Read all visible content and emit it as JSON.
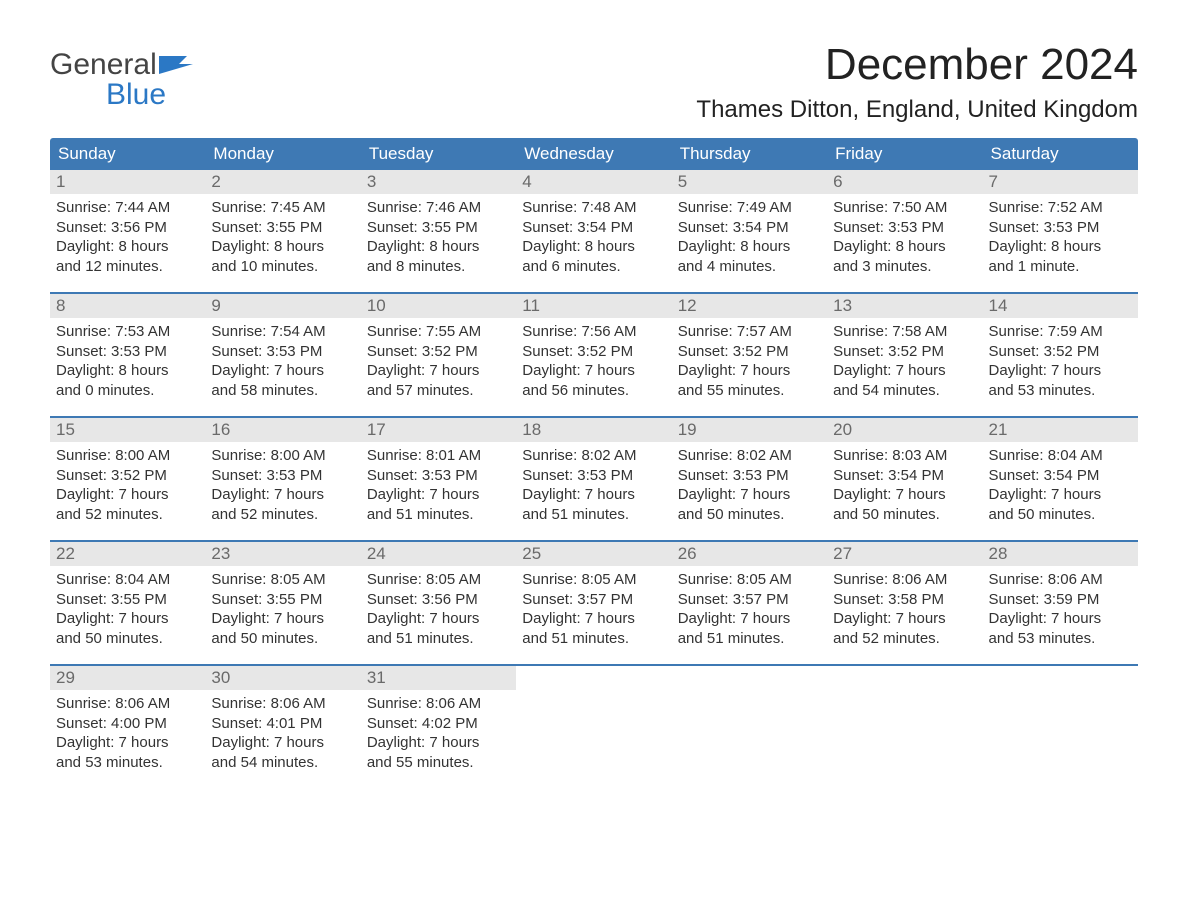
{
  "brand": {
    "word1": "General",
    "word2": "Blue"
  },
  "title": "December 2024",
  "location": "Thames Ditton, England, United Kingdom",
  "colors": {
    "header_bg": "#3e79b4",
    "header_text": "#ffffff",
    "daynum_bg": "#e7e7e7",
    "daynum_text": "#6a6a6a",
    "week_border": "#3e79b4",
    "brand_blue": "#2b78c5",
    "body_text": "#333333"
  },
  "weekdays": [
    "Sunday",
    "Monday",
    "Tuesday",
    "Wednesday",
    "Thursday",
    "Friday",
    "Saturday"
  ],
  "weeks": [
    [
      {
        "n": "1",
        "sunrise": "Sunrise: 7:44 AM",
        "sunset": "Sunset: 3:56 PM",
        "day1": "Daylight: 8 hours",
        "day2": "and 12 minutes."
      },
      {
        "n": "2",
        "sunrise": "Sunrise: 7:45 AM",
        "sunset": "Sunset: 3:55 PM",
        "day1": "Daylight: 8 hours",
        "day2": "and 10 minutes."
      },
      {
        "n": "3",
        "sunrise": "Sunrise: 7:46 AM",
        "sunset": "Sunset: 3:55 PM",
        "day1": "Daylight: 8 hours",
        "day2": "and 8 minutes."
      },
      {
        "n": "4",
        "sunrise": "Sunrise: 7:48 AM",
        "sunset": "Sunset: 3:54 PM",
        "day1": "Daylight: 8 hours",
        "day2": "and 6 minutes."
      },
      {
        "n": "5",
        "sunrise": "Sunrise: 7:49 AM",
        "sunset": "Sunset: 3:54 PM",
        "day1": "Daylight: 8 hours",
        "day2": "and 4 minutes."
      },
      {
        "n": "6",
        "sunrise": "Sunrise: 7:50 AM",
        "sunset": "Sunset: 3:53 PM",
        "day1": "Daylight: 8 hours",
        "day2": "and 3 minutes."
      },
      {
        "n": "7",
        "sunrise": "Sunrise: 7:52 AM",
        "sunset": "Sunset: 3:53 PM",
        "day1": "Daylight: 8 hours",
        "day2": "and 1 minute."
      }
    ],
    [
      {
        "n": "8",
        "sunrise": "Sunrise: 7:53 AM",
        "sunset": "Sunset: 3:53 PM",
        "day1": "Daylight: 8 hours",
        "day2": "and 0 minutes."
      },
      {
        "n": "9",
        "sunrise": "Sunrise: 7:54 AM",
        "sunset": "Sunset: 3:53 PM",
        "day1": "Daylight: 7 hours",
        "day2": "and 58 minutes."
      },
      {
        "n": "10",
        "sunrise": "Sunrise: 7:55 AM",
        "sunset": "Sunset: 3:52 PM",
        "day1": "Daylight: 7 hours",
        "day2": "and 57 minutes."
      },
      {
        "n": "11",
        "sunrise": "Sunrise: 7:56 AM",
        "sunset": "Sunset: 3:52 PM",
        "day1": "Daylight: 7 hours",
        "day2": "and 56 minutes."
      },
      {
        "n": "12",
        "sunrise": "Sunrise: 7:57 AM",
        "sunset": "Sunset: 3:52 PM",
        "day1": "Daylight: 7 hours",
        "day2": "and 55 minutes."
      },
      {
        "n": "13",
        "sunrise": "Sunrise: 7:58 AM",
        "sunset": "Sunset: 3:52 PM",
        "day1": "Daylight: 7 hours",
        "day2": "and 54 minutes."
      },
      {
        "n": "14",
        "sunrise": "Sunrise: 7:59 AM",
        "sunset": "Sunset: 3:52 PM",
        "day1": "Daylight: 7 hours",
        "day2": "and 53 minutes."
      }
    ],
    [
      {
        "n": "15",
        "sunrise": "Sunrise: 8:00 AM",
        "sunset": "Sunset: 3:52 PM",
        "day1": "Daylight: 7 hours",
        "day2": "and 52 minutes."
      },
      {
        "n": "16",
        "sunrise": "Sunrise: 8:00 AM",
        "sunset": "Sunset: 3:53 PM",
        "day1": "Daylight: 7 hours",
        "day2": "and 52 minutes."
      },
      {
        "n": "17",
        "sunrise": "Sunrise: 8:01 AM",
        "sunset": "Sunset: 3:53 PM",
        "day1": "Daylight: 7 hours",
        "day2": "and 51 minutes."
      },
      {
        "n": "18",
        "sunrise": "Sunrise: 8:02 AM",
        "sunset": "Sunset: 3:53 PM",
        "day1": "Daylight: 7 hours",
        "day2": "and 51 minutes."
      },
      {
        "n": "19",
        "sunrise": "Sunrise: 8:02 AM",
        "sunset": "Sunset: 3:53 PM",
        "day1": "Daylight: 7 hours",
        "day2": "and 50 minutes."
      },
      {
        "n": "20",
        "sunrise": "Sunrise: 8:03 AM",
        "sunset": "Sunset: 3:54 PM",
        "day1": "Daylight: 7 hours",
        "day2": "and 50 minutes."
      },
      {
        "n": "21",
        "sunrise": "Sunrise: 8:04 AM",
        "sunset": "Sunset: 3:54 PM",
        "day1": "Daylight: 7 hours",
        "day2": "and 50 minutes."
      }
    ],
    [
      {
        "n": "22",
        "sunrise": "Sunrise: 8:04 AM",
        "sunset": "Sunset: 3:55 PM",
        "day1": "Daylight: 7 hours",
        "day2": "and 50 minutes."
      },
      {
        "n": "23",
        "sunrise": "Sunrise: 8:05 AM",
        "sunset": "Sunset: 3:55 PM",
        "day1": "Daylight: 7 hours",
        "day2": "and 50 minutes."
      },
      {
        "n": "24",
        "sunrise": "Sunrise: 8:05 AM",
        "sunset": "Sunset: 3:56 PM",
        "day1": "Daylight: 7 hours",
        "day2": "and 51 minutes."
      },
      {
        "n": "25",
        "sunrise": "Sunrise: 8:05 AM",
        "sunset": "Sunset: 3:57 PM",
        "day1": "Daylight: 7 hours",
        "day2": "and 51 minutes."
      },
      {
        "n": "26",
        "sunrise": "Sunrise: 8:05 AM",
        "sunset": "Sunset: 3:57 PM",
        "day1": "Daylight: 7 hours",
        "day2": "and 51 minutes."
      },
      {
        "n": "27",
        "sunrise": "Sunrise: 8:06 AM",
        "sunset": "Sunset: 3:58 PM",
        "day1": "Daylight: 7 hours",
        "day2": "and 52 minutes."
      },
      {
        "n": "28",
        "sunrise": "Sunrise: 8:06 AM",
        "sunset": "Sunset: 3:59 PM",
        "day1": "Daylight: 7 hours",
        "day2": "and 53 minutes."
      }
    ],
    [
      {
        "n": "29",
        "sunrise": "Sunrise: 8:06 AM",
        "sunset": "Sunset: 4:00 PM",
        "day1": "Daylight: 7 hours",
        "day2": "and 53 minutes."
      },
      {
        "n": "30",
        "sunrise": "Sunrise: 8:06 AM",
        "sunset": "Sunset: 4:01 PM",
        "day1": "Daylight: 7 hours",
        "day2": "and 54 minutes."
      },
      {
        "n": "31",
        "sunrise": "Sunrise: 8:06 AM",
        "sunset": "Sunset: 4:02 PM",
        "day1": "Daylight: 7 hours",
        "day2": "and 55 minutes."
      },
      {
        "empty": true
      },
      {
        "empty": true
      },
      {
        "empty": true
      },
      {
        "empty": true
      }
    ]
  ]
}
